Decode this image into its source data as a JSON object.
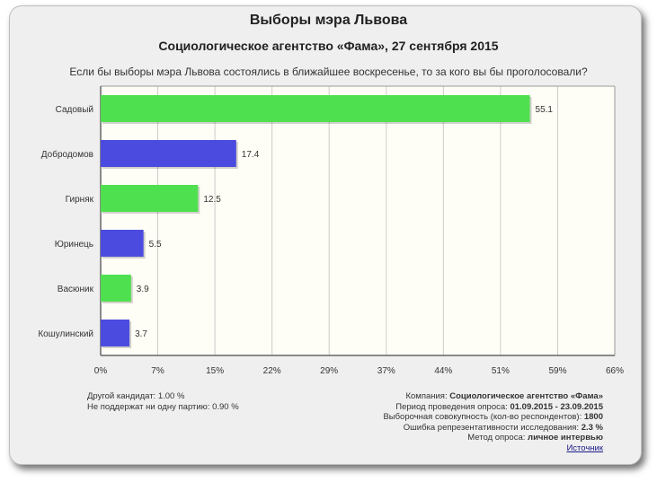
{
  "chart_data": {
    "type": "bar",
    "orientation": "horizontal",
    "title": "Выборы мэра Львова",
    "subtitle": "Социологическое агентство «Фама», 27 сентября 2015",
    "question": "Если бы выборы мэра Львова состоялись в ближайшее воскресенье, то за кого вы бы проголосовали?",
    "categories": [
      "Садовый",
      "Добродомов",
      "Гирняк",
      "Юринець",
      "Васюник",
      "Кошулинский"
    ],
    "values": [
      55.1,
      17.4,
      12.5,
      5.5,
      3.9,
      3.7
    ],
    "value_labels": [
      "55.1",
      "17.4",
      "12.5",
      "5.5",
      "3.9",
      "3.7"
    ],
    "colors": [
      "#4fe04f",
      "#4b4bdf",
      "#4fe04f",
      "#4b4bdf",
      "#4fe04f",
      "#4b4bdf"
    ],
    "xlim": [
      0,
      66
    ],
    "x_ticks": [
      0,
      7.33,
      14.67,
      22,
      29.33,
      36.67,
      44,
      51.33,
      58.67,
      66
    ],
    "x_tick_labels": [
      "0%",
      "7%",
      "15%",
      "22%",
      "29%",
      "37%",
      "44%",
      "51%",
      "59%",
      "66%"
    ],
    "grid": true,
    "xlabel": "",
    "ylabel": ""
  },
  "notes": {
    "other": "Другой кандидат: 1.00 %",
    "none": "Не поддержат ни одну партию: 0.90 %",
    "company_label": "Компания:",
    "company_value": "Социологическое агентство «Фама»",
    "period_label": "Период проведения опроса:",
    "period_value": "01.09.2015 - 23.09.2015",
    "sample_label": "Выборочная совокупность (кол-во респондентов):",
    "sample_value": "1800",
    "error_label": "Ошибка репрезентативности исследования:",
    "error_value": "2.3 %",
    "method_label": "Метод опроса:",
    "method_value": "личное интервью",
    "source_link": "Источник"
  },
  "colors": {
    "plot_background": "#fffef6",
    "card_background": "#efefef",
    "grid": "#cccccc",
    "bar_green": "#4fe04f",
    "bar_blue": "#4b4bdf"
  }
}
